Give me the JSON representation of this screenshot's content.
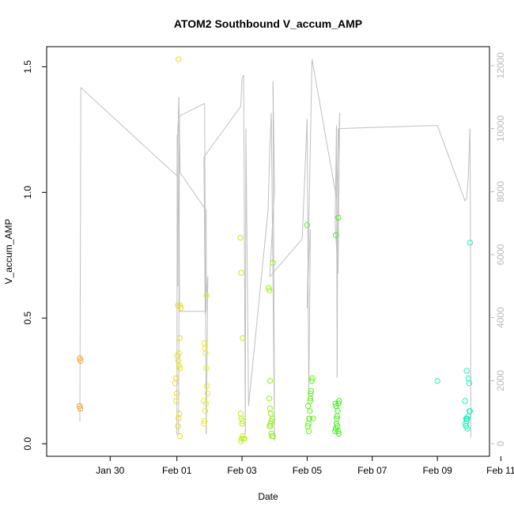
{
  "chart_data": {
    "type": "scatter",
    "title": "ATOM2 Southbound V_accum_AMP",
    "xlabel": "Date",
    "ylabel": "V_accum_AMP",
    "xlim": [
      "2015-01-28",
      "2015-02-11.6"
    ],
    "ylim": [
      -0.05,
      1.58
    ],
    "y2lim": [
      -400,
      12600
    ],
    "x_ticks": [
      "Jan 30",
      "Feb 01",
      "Feb 03",
      "Feb 05",
      "Feb 07",
      "Feb 09",
      "Feb 11"
    ],
    "y_ticks": [
      "0.0",
      "0.5",
      "1.0",
      "1.5"
    ],
    "y2_ticks": [
      "0",
      "2000",
      "4000",
      "6000",
      "8000",
      "10000",
      "12000"
    ],
    "line_color": "#c0c0c0",
    "point_color_gradient": [
      "#f0a020",
      "#e8f020",
      "#40f020",
      "#20f0c0"
    ],
    "points": [
      [
        29.02,
        0.34
      ],
      [
        29.04,
        0.33
      ],
      [
        29.01,
        0.15
      ],
      [
        29.03,
        0.14
      ],
      [
        31.95,
        0.24
      ],
      [
        31.97,
        0.26
      ],
      [
        31.98,
        0.17
      ],
      [
        32.0,
        0.2
      ],
      [
        32.02,
        0.35
      ],
      [
        32.04,
        0.33
      ],
      [
        32.06,
        0.31
      ],
      [
        32.08,
        0.42
      ],
      [
        32.1,
        0.55
      ],
      [
        32.12,
        0.54
      ],
      [
        32.05,
        0.1
      ],
      [
        32.07,
        0.12
      ],
      [
        32.09,
        0.03
      ],
      [
        32.03,
        0.07
      ],
      [
        32.05,
        1.53
      ],
      [
        32.03,
        0.55
      ],
      [
        32.06,
        0.36
      ],
      [
        32.1,
        0.3
      ],
      [
        32.82,
        0.17
      ],
      [
        32.84,
        0.4
      ],
      [
        32.86,
        0.38
      ],
      [
        32.88,
        0.36
      ],
      [
        32.9,
        0.3
      ],
      [
        32.92,
        0.23
      ],
      [
        32.94,
        0.2
      ],
      [
        32.85,
        0.09
      ],
      [
        32.87,
        0.13
      ],
      [
        32.89,
        0.16
      ],
      [
        32.91,
        0.59
      ],
      [
        32.83,
        0.08
      ],
      [
        33.95,
        0.82
      ],
      [
        33.98,
        0.68
      ],
      [
        34.02,
        0.42
      ],
      [
        33.96,
        0.12
      ],
      [
        33.98,
        0.1
      ],
      [
        34.0,
        0.08
      ],
      [
        34.02,
        0.09
      ],
      [
        33.99,
        0.02
      ],
      [
        34.02,
        0.03
      ],
      [
        34.05,
        0.02
      ],
      [
        34.07,
        0.02
      ],
      [
        33.97,
        0.01
      ],
      [
        34.82,
        0.62
      ],
      [
        34.84,
        0.61
      ],
      [
        34.95,
        0.72
      ],
      [
        34.86,
        0.25
      ],
      [
        34.84,
        0.18
      ],
      [
        34.86,
        0.14
      ],
      [
        34.88,
        0.12
      ],
      [
        34.9,
        0.09
      ],
      [
        34.93,
        0.1
      ],
      [
        34.85,
        0.07
      ],
      [
        34.88,
        0.08
      ],
      [
        34.9,
        0.04
      ],
      [
        34.92,
        0.03
      ],
      [
        34.95,
        0.03
      ],
      [
        34.87,
        0.07
      ],
      [
        36.0,
        0.87
      ],
      [
        36.02,
        0.07
      ],
      [
        36.04,
        0.08
      ],
      [
        36.06,
        0.1
      ],
      [
        36.08,
        0.13
      ],
      [
        36.1,
        0.18
      ],
      [
        36.12,
        0.21
      ],
      [
        36.14,
        0.25
      ],
      [
        36.16,
        0.26
      ],
      [
        36.05,
        0.05
      ],
      [
        36.07,
        0.1
      ],
      [
        36.09,
        0.17
      ],
      [
        36.11,
        0.2
      ],
      [
        36.03,
        0.15
      ],
      [
        36.18,
        0.1
      ],
      [
        36.88,
        0.83
      ],
      [
        36.96,
        0.9
      ],
      [
        36.86,
        0.05
      ],
      [
        36.88,
        0.06
      ],
      [
        36.9,
        0.08
      ],
      [
        36.92,
        0.11
      ],
      [
        36.94,
        0.13
      ],
      [
        36.96,
        0.16
      ],
      [
        36.98,
        0.17
      ],
      [
        36.89,
        0.15
      ],
      [
        36.91,
        0.1
      ],
      [
        36.93,
        0.07
      ],
      [
        36.95,
        0.05
      ],
      [
        36.97,
        0.04
      ],
      [
        36.87,
        0.16
      ],
      [
        40.0,
        0.25
      ],
      [
        40.85,
        0.17
      ],
      [
        40.9,
        0.29
      ],
      [
        40.95,
        0.26
      ],
      [
        40.98,
        0.24
      ],
      [
        41.0,
        0.8
      ],
      [
        40.88,
        0.1
      ],
      [
        40.9,
        0.09
      ],
      [
        40.92,
        0.1
      ],
      [
        40.95,
        0.11
      ],
      [
        40.98,
        0.13
      ],
      [
        40.86,
        0.08
      ],
      [
        40.88,
        0.07
      ],
      [
        40.92,
        0.06
      ],
      [
        41.0,
        0.13
      ],
      [
        40.9,
        0.1
      ]
    ],
    "line": [
      [
        29.02,
        700
      ],
      [
        29.05,
        11300
      ],
      [
        32.0,
        8500
      ],
      [
        32.02,
        9600
      ],
      [
        32.06,
        11000
      ],
      [
        32.1,
        8600
      ],
      [
        32.9,
        7400
      ],
      [
        32.9,
        4200
      ],
      [
        32.08,
        4200
      ],
      [
        32.06,
        10200
      ],
      [
        32.03,
        5000
      ],
      [
        32.01,
        9800
      ],
      [
        32.0,
        300
      ],
      [
        32.05,
        300
      ],
      [
        32.08,
        10400
      ],
      [
        32.85,
        10800
      ],
      [
        32.9,
        300
      ],
      [
        32.95,
        5300
      ],
      [
        32.87,
        4100
      ],
      [
        32.83,
        9100
      ],
      [
        33.96,
        10700
      ],
      [
        34.0,
        11600
      ],
      [
        34.05,
        11700
      ],
      [
        34.1,
        300
      ],
      [
        34.12,
        10000
      ],
      [
        34.2,
        1200
      ],
      [
        34.8,
        7400
      ],
      [
        34.85,
        9300
      ],
      [
        34.9,
        10500
      ],
      [
        35.0,
        100
      ],
      [
        34.95,
        11500
      ],
      [
        35.0,
        8100
      ],
      [
        34.85,
        5300
      ],
      [
        35.85,
        6500
      ],
      [
        36.0,
        10300
      ],
      [
        36.05,
        1500
      ],
      [
        36.1,
        6800
      ],
      [
        36.05,
        5900
      ],
      [
        36.0,
        4300
      ],
      [
        36.15,
        12200
      ],
      [
        36.9,
        7800
      ],
      [
        37.0,
        10500
      ],
      [
        36.95,
        5400
      ],
      [
        36.86,
        7000
      ],
      [
        36.9,
        10100
      ],
      [
        36.92,
        2100
      ],
      [
        36.95,
        10000
      ],
      [
        40.0,
        10100
      ],
      [
        40.85,
        7700
      ],
      [
        40.9,
        7800
      ],
      [
        40.95,
        8500
      ],
      [
        41.0,
        10000
      ],
      [
        41.02,
        6200
      ],
      [
        41.03,
        200
      ]
    ]
  }
}
